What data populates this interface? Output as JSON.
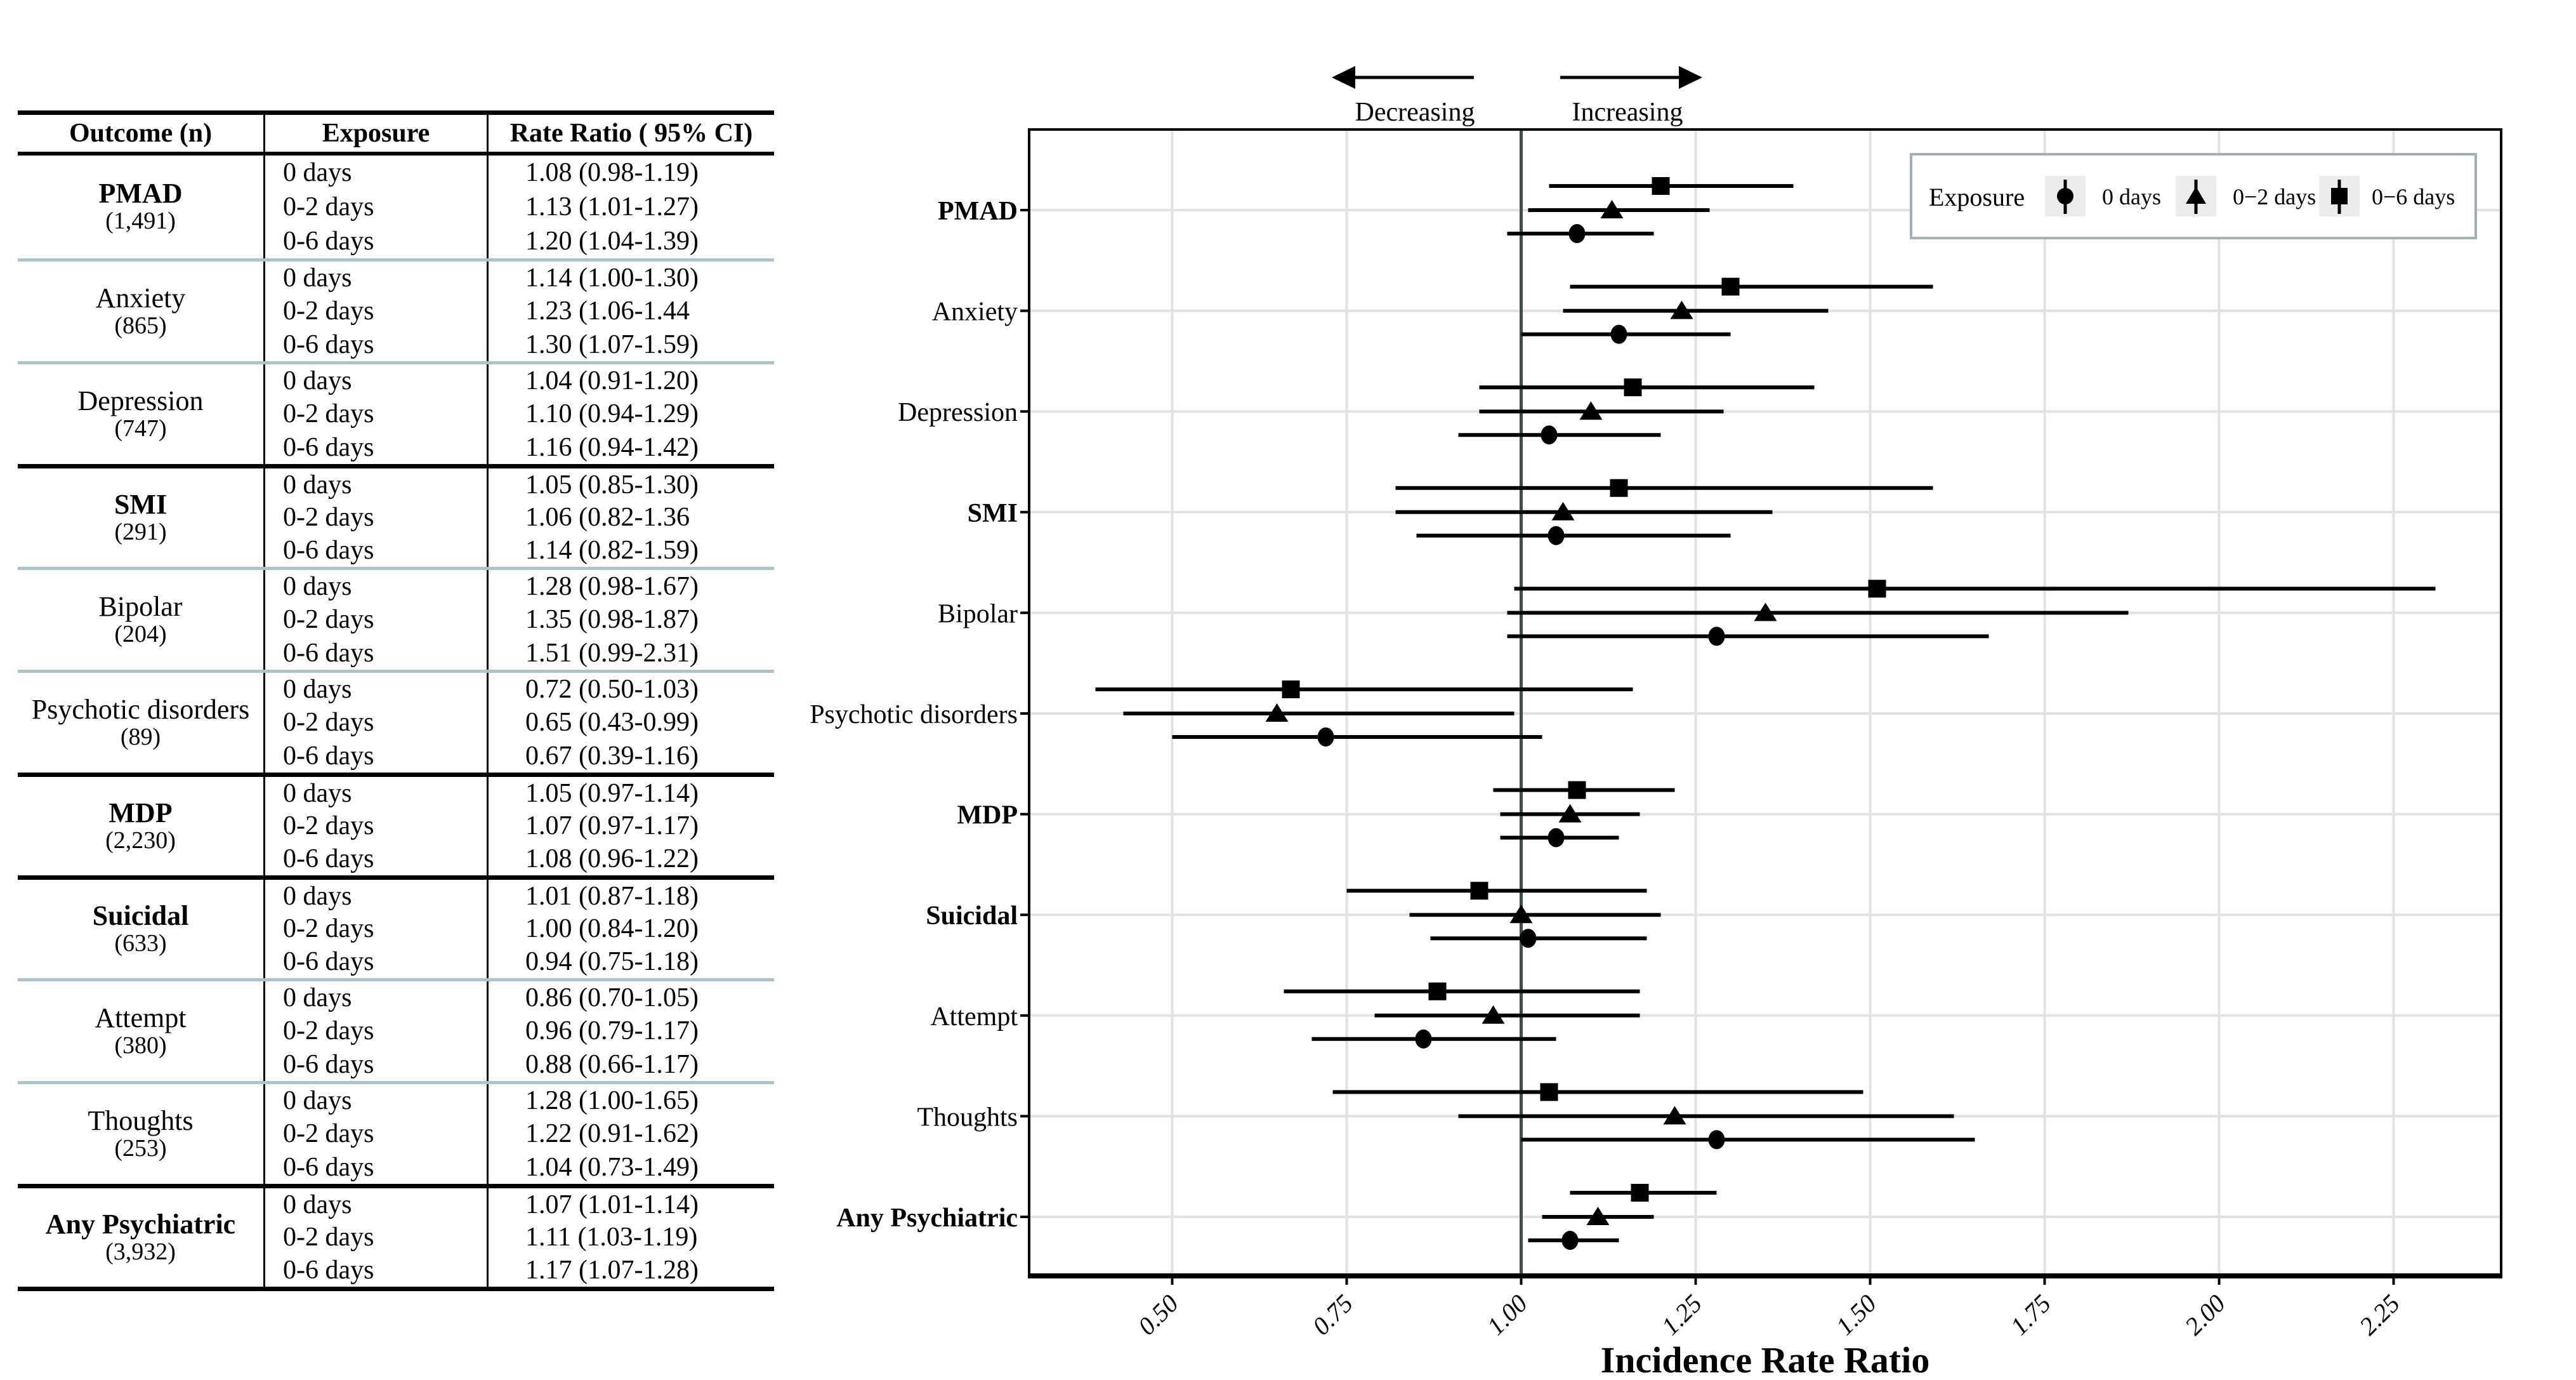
{
  "colors": {
    "grid": "#e1e1e1",
    "reference_line": "#3f4f4f",
    "teal_divider": "#a9c4c8",
    "legend_border": "#9fb1b7",
    "legend_key_bg": "#ececec",
    "text": "#000000"
  },
  "table": {
    "headers": [
      "Outcome (n)",
      "Exposure",
      "Rate Ratio ( 95% CI)"
    ],
    "groups": [
      {
        "outcome": "PMAD",
        "n": "(1,491)",
        "bold": true,
        "divider": "none",
        "rows": [
          {
            "exposure": "0 days",
            "rr": "1.08 (0.98-1.19)"
          },
          {
            "exposure": "0-2 days",
            "rr": "1.13 (1.01-1.27)"
          },
          {
            "exposure": "0-6 days",
            "rr": "1.20 (1.04-1.39)"
          }
        ]
      },
      {
        "outcome": "Anxiety",
        "n": "(865)",
        "bold": false,
        "divider": "teal",
        "rows": [
          {
            "exposure": "0 days",
            "rr": "1.14 (1.00-1.30)"
          },
          {
            "exposure": "0-2 days",
            "rr": "1.23 (1.06-1.44"
          },
          {
            "exposure": "0-6 days",
            "rr": "1.30 (1.07-1.59)"
          }
        ]
      },
      {
        "outcome": "Depression",
        "n": "(747)",
        "bold": false,
        "divider": "teal",
        "rows": [
          {
            "exposure": "0 days",
            "rr": "1.04 (0.91-1.20)"
          },
          {
            "exposure": "0-2 days",
            "rr": "1.10 (0.94-1.29)"
          },
          {
            "exposure": "0-6 days",
            "rr": "1.16 (0.94-1.42)"
          }
        ]
      },
      {
        "outcome": "SMI",
        "n": "(291)",
        "bold": true,
        "divider": "black",
        "rows": [
          {
            "exposure": "0 days",
            "rr": "1.05 (0.85-1.30)"
          },
          {
            "exposure": "0-2 days",
            "rr": "1.06 (0.82-1.36"
          },
          {
            "exposure": "0-6 days",
            "rr": "1.14 (0.82-1.59)"
          }
        ]
      },
      {
        "outcome": "Bipolar",
        "n": "(204)",
        "bold": false,
        "divider": "teal",
        "rows": [
          {
            "exposure": "0 days",
            "rr": "1.28 (0.98-1.67)"
          },
          {
            "exposure": "0-2 days",
            "rr": "1.35 (0.98-1.87)"
          },
          {
            "exposure": "0-6 days",
            "rr": "1.51 (0.99-2.31)"
          }
        ]
      },
      {
        "outcome": "Psychotic disorders",
        "n": "(89)",
        "bold": false,
        "divider": "teal",
        "rows": [
          {
            "exposure": "0 days",
            "rr": "0.72 (0.50-1.03)"
          },
          {
            "exposure": "0-2 days",
            "rr": "0.65 (0.43-0.99)"
          },
          {
            "exposure": "0-6 days",
            "rr": "0.67 (0.39-1.16)"
          }
        ]
      },
      {
        "outcome": "MDP",
        "n": "(2,230)",
        "bold": true,
        "divider": "black",
        "rows": [
          {
            "exposure": "0 days",
            "rr": "1.05 (0.97-1.14)"
          },
          {
            "exposure": "0-2 days",
            "rr": "1.07 (0.97-1.17)"
          },
          {
            "exposure": "0-6 days",
            "rr": "1.08 (0.96-1.22)"
          }
        ]
      },
      {
        "outcome": "Suicidal",
        "n": "(633)",
        "bold": true,
        "divider": "black",
        "rows": [
          {
            "exposure": "0 days",
            "rr": "1.01 (0.87-1.18)"
          },
          {
            "exposure": "0-2 days",
            "rr": "1.00 (0.84-1.20)"
          },
          {
            "exposure": "0-6 days",
            "rr": "0.94 (0.75-1.18)"
          }
        ]
      },
      {
        "outcome": "Attempt",
        "n": "(380)",
        "bold": false,
        "divider": "teal",
        "rows": [
          {
            "exposure": "0 days",
            "rr": "0.86 (0.70-1.05)"
          },
          {
            "exposure": "0-2 days",
            "rr": "0.96 (0.79-1.17)"
          },
          {
            "exposure": "0-6 days",
            "rr": "0.88 (0.66-1.17)"
          }
        ]
      },
      {
        "outcome": "Thoughts",
        "n": "(253)",
        "bold": false,
        "divider": "teal",
        "rows": [
          {
            "exposure": "0 days",
            "rr": "1.28 (1.00-1.65)"
          },
          {
            "exposure": "0-2 days",
            "rr": "1.22 (0.91-1.62)"
          },
          {
            "exposure": "0-6 days",
            "rr": "1.04 (0.73-1.49)"
          }
        ]
      },
      {
        "outcome": "Any Psychiatric",
        "n": "(3,932)",
        "bold": true,
        "divider": "black",
        "rows": [
          {
            "exposure": "0 days",
            "rr": "1.07 (1.01-1.14)"
          },
          {
            "exposure": "0-2 days",
            "rr": "1.11 (1.03-1.19)"
          },
          {
            "exposure": "0-6 days",
            "rr": "1.17 (1.07-1.28)"
          }
        ]
      }
    ]
  },
  "plot": {
    "direction": {
      "decreasing": "Decreasing",
      "increasing": "Increasing"
    },
    "legend": {
      "title": "Exposure",
      "items": [
        {
          "label": "0 days",
          "shape": "circle"
        },
        {
          "label": "0−2 days",
          "shape": "triangle"
        },
        {
          "label": "0−6 days",
          "shape": "square"
        }
      ]
    },
    "x_axis": {
      "title": "Incidence Rate Ratio",
      "tick_labels": [
        "0.50",
        "0.75",
        "1.00",
        "1.25",
        "1.50",
        "1.75",
        "2.00",
        "2.25"
      ]
    }
  },
  "chart_data": {
    "type": "scatter",
    "subtype": "forest",
    "xlabel": "Incidence Rate Ratio",
    "x_ticks": [
      0.5,
      0.75,
      1.0,
      1.25,
      1.5,
      1.75,
      2.0,
      2.25
    ],
    "x_domain": [
      0.295,
      2.405
    ],
    "reference_line": 1.0,
    "grid": true,
    "legend_position": "top-right",
    "categories": [
      "PMAD",
      "Anxiety",
      "Depression",
      "SMI",
      "Bipolar",
      "Psychotic disorders",
      "MDP",
      "Suicidal",
      "Attempt",
      "Thoughts",
      "Any Psychiatric"
    ],
    "series": [
      {
        "name": "0 days",
        "marker": "circle",
        "points": [
          {
            "outcome": "PMAD",
            "rr": 1.08,
            "lo": 0.98,
            "hi": 1.19
          },
          {
            "outcome": "Anxiety",
            "rr": 1.14,
            "lo": 1.0,
            "hi": 1.3
          },
          {
            "outcome": "Depression",
            "rr": 1.04,
            "lo": 0.91,
            "hi": 1.2
          },
          {
            "outcome": "SMI",
            "rr": 1.05,
            "lo": 0.85,
            "hi": 1.3
          },
          {
            "outcome": "Bipolar",
            "rr": 1.28,
            "lo": 0.98,
            "hi": 1.67
          },
          {
            "outcome": "Psychotic disorders",
            "rr": 0.72,
            "lo": 0.5,
            "hi": 1.03
          },
          {
            "outcome": "MDP",
            "rr": 1.05,
            "lo": 0.97,
            "hi": 1.14
          },
          {
            "outcome": "Suicidal",
            "rr": 1.01,
            "lo": 0.87,
            "hi": 1.18
          },
          {
            "outcome": "Attempt",
            "rr": 0.86,
            "lo": 0.7,
            "hi": 1.05
          },
          {
            "outcome": "Thoughts",
            "rr": 1.28,
            "lo": 1.0,
            "hi": 1.65
          },
          {
            "outcome": "Any Psychiatric",
            "rr": 1.07,
            "lo": 1.01,
            "hi": 1.14
          }
        ]
      },
      {
        "name": "0−2 days",
        "marker": "triangle",
        "points": [
          {
            "outcome": "PMAD",
            "rr": 1.13,
            "lo": 1.01,
            "hi": 1.27
          },
          {
            "outcome": "Anxiety",
            "rr": 1.23,
            "lo": 1.06,
            "hi": 1.44
          },
          {
            "outcome": "Depression",
            "rr": 1.1,
            "lo": 0.94,
            "hi": 1.29
          },
          {
            "outcome": "SMI",
            "rr": 1.06,
            "lo": 0.82,
            "hi": 1.36
          },
          {
            "outcome": "Bipolar",
            "rr": 1.35,
            "lo": 0.98,
            "hi": 1.87
          },
          {
            "outcome": "Psychotic disorders",
            "rr": 0.65,
            "lo": 0.43,
            "hi": 0.99
          },
          {
            "outcome": "MDP",
            "rr": 1.07,
            "lo": 0.97,
            "hi": 1.17
          },
          {
            "outcome": "Suicidal",
            "rr": 1.0,
            "lo": 0.84,
            "hi": 1.2
          },
          {
            "outcome": "Attempt",
            "rr": 0.96,
            "lo": 0.79,
            "hi": 1.17
          },
          {
            "outcome": "Thoughts",
            "rr": 1.22,
            "lo": 0.91,
            "hi": 1.62
          },
          {
            "outcome": "Any Psychiatric",
            "rr": 1.11,
            "lo": 1.03,
            "hi": 1.19
          }
        ]
      },
      {
        "name": "0−6 days",
        "marker": "square",
        "points": [
          {
            "outcome": "PMAD",
            "rr": 1.2,
            "lo": 1.04,
            "hi": 1.39
          },
          {
            "outcome": "Anxiety",
            "rr": 1.3,
            "lo": 1.07,
            "hi": 1.59
          },
          {
            "outcome": "Depression",
            "rr": 1.16,
            "lo": 0.94,
            "hi": 1.42
          },
          {
            "outcome": "SMI",
            "rr": 1.14,
            "lo": 0.82,
            "hi": 1.59
          },
          {
            "outcome": "Bipolar",
            "rr": 1.51,
            "lo": 0.99,
            "hi": 2.31
          },
          {
            "outcome": "Psychotic disorders",
            "rr": 0.67,
            "lo": 0.39,
            "hi": 1.16
          },
          {
            "outcome": "MDP",
            "rr": 1.08,
            "lo": 0.96,
            "hi": 1.22
          },
          {
            "outcome": "Suicidal",
            "rr": 0.94,
            "lo": 0.75,
            "hi": 1.18
          },
          {
            "outcome": "Attempt",
            "rr": 0.88,
            "lo": 0.66,
            "hi": 1.17
          },
          {
            "outcome": "Thoughts",
            "rr": 1.04,
            "lo": 0.73,
            "hi": 1.49
          },
          {
            "outcome": "Any Psychiatric",
            "rr": 1.17,
            "lo": 1.07,
            "hi": 1.28
          }
        ]
      }
    ]
  }
}
